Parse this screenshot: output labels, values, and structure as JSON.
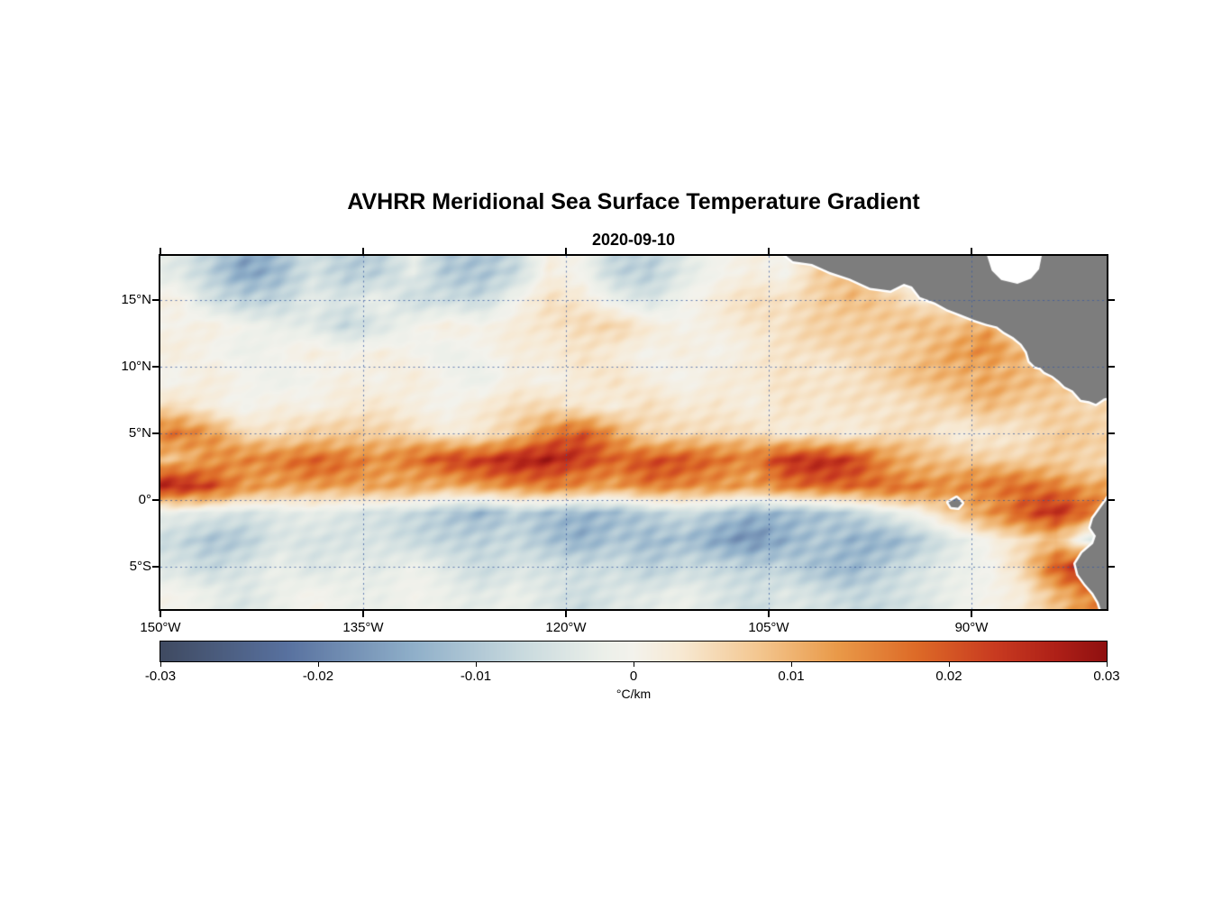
{
  "title": "AVHRR Meridional Sea Surface Temperature Gradient",
  "subtitle": "2020-09-10",
  "colors": {
    "background": "#ffffff",
    "axis": "#000000",
    "grid": "rgba(55,90,160,0.75)",
    "land": "#7d7d7d",
    "coast_halo": "#ffffff",
    "text": "#000000"
  },
  "axes": {
    "lon_range": [
      -150,
      -80
    ],
    "lat_range": [
      -8.2,
      18.3
    ],
    "x_ticks": [
      {
        "lon": -150,
        "label": "150°W"
      },
      {
        "lon": -135,
        "label": "135°W"
      },
      {
        "lon": -120,
        "label": "120°W"
      },
      {
        "lon": -105,
        "label": "105°W"
      },
      {
        "lon": -90,
        "label": "90°W"
      }
    ],
    "y_ticks": [
      {
        "lat": 15,
        "label": "15°N"
      },
      {
        "lat": 10,
        "label": "10°N"
      },
      {
        "lat": 5,
        "label": "5°N"
      },
      {
        "lat": 0,
        "label": "0°"
      },
      {
        "lat": -5,
        "label": "5°S"
      }
    ]
  },
  "colorbar": {
    "min": -0.03,
    "max": 0.03,
    "tick_values": [
      -0.03,
      -0.02,
      -0.01,
      0,
      0.01,
      0.02,
      0.03
    ],
    "tick_labels": [
      "-0.03",
      "-0.02",
      "-0.01",
      "0",
      "0.01",
      "0.02",
      "0.03"
    ],
    "label": "°C/km"
  },
  "chart_data": {
    "type": "heatmap",
    "title": "AVHRR Meridional Sea Surface Temperature Gradient",
    "date": "2020-09-10",
    "value_units": "°C/km",
    "value_scale": 0.001,
    "value_range": [
      -0.03,
      0.03
    ],
    "lon": [
      -148.75,
      -146.25,
      -143.75,
      -141.25,
      -138.75,
      -136.25,
      -133.75,
      -131.25,
      -128.75,
      -126.25,
      -123.75,
      -121.25,
      -118.75,
      -116.25,
      -113.75,
      -111.25,
      -108.75,
      -106.25,
      -103.75,
      -101.25,
      -98.75,
      -96.25,
      -93.75,
      -91.25,
      -88.75,
      -86.25,
      -83.75,
      -81.25
    ],
    "lat": [
      17,
      15,
      13,
      11,
      9,
      7,
      5,
      3,
      1,
      -1,
      -3,
      -5,
      -7
    ],
    "values_milli": [
      [
        -4,
        -8,
        -14,
        -12,
        -6,
        -10,
        -8,
        -2,
        -10,
        -12,
        -8,
        2,
        0,
        -8,
        -10,
        -4,
        0,
        2,
        0,
        6,
        8,
        4,
        0,
        0,
        0,
        0,
        0,
        0
      ],
      [
        2,
        -6,
        -10,
        -8,
        -2,
        -4,
        -2,
        -8,
        -6,
        -6,
        0,
        4,
        2,
        -2,
        -4,
        0,
        2,
        4,
        4,
        8,
        10,
        6,
        2,
        4,
        0,
        0,
        0,
        0
      ],
      [
        0,
        2,
        0,
        -2,
        -4,
        -8,
        -4,
        0,
        2,
        0,
        2,
        4,
        6,
        6,
        2,
        0,
        2,
        4,
        4,
        6,
        6,
        8,
        10,
        8,
        10,
        0,
        0,
        0
      ],
      [
        2,
        0,
        -2,
        0,
        2,
        0,
        2,
        0,
        -2,
        0,
        2,
        2,
        4,
        2,
        0,
        2,
        0,
        2,
        4,
        4,
        6,
        6,
        8,
        12,
        14,
        10,
        0,
        0
      ],
      [
        0,
        2,
        0,
        -2,
        0,
        2,
        0,
        2,
        0,
        -2,
        2,
        0,
        2,
        4,
        2,
        0,
        2,
        2,
        4,
        4,
        4,
        6,
        8,
        10,
        12,
        10,
        8,
        6
      ],
      [
        4,
        2,
        0,
        2,
        0,
        2,
        4,
        2,
        0,
        2,
        4,
        6,
        4,
        2,
        4,
        2,
        4,
        2,
        4,
        2,
        4,
        4,
        6,
        6,
        8,
        6,
        8,
        6
      ],
      [
        18,
        12,
        4,
        4,
        8,
        8,
        6,
        4,
        2,
        4,
        8,
        14,
        18,
        12,
        6,
        6,
        4,
        4,
        2,
        4,
        2,
        4,
        4,
        2,
        4,
        4,
        6,
        6
      ],
      [
        8,
        14,
        16,
        16,
        18,
        16,
        14,
        18,
        22,
        22,
        26,
        28,
        24,
        18,
        20,
        20,
        18,
        16,
        24,
        24,
        22,
        14,
        10,
        8,
        6,
        6,
        8,
        6
      ],
      [
        26,
        22,
        14,
        12,
        12,
        12,
        12,
        12,
        10,
        12,
        14,
        16,
        14,
        12,
        16,
        14,
        14,
        12,
        16,
        18,
        18,
        18,
        16,
        14,
        16,
        18,
        16,
        12
      ],
      [
        -2,
        -4,
        -6,
        -4,
        -2,
        -4,
        -6,
        -8,
        -10,
        -12,
        -8,
        -12,
        -14,
        -12,
        -8,
        -6,
        -10,
        -14,
        -12,
        -10,
        -8,
        -4,
        0,
        8,
        14,
        20,
        24,
        16
      ],
      [
        -8,
        -10,
        -8,
        -4,
        -6,
        -6,
        -4,
        -6,
        -8,
        -10,
        -8,
        -10,
        -12,
        -10,
        -14,
        -12,
        -14,
        -16,
        -14,
        -12,
        -14,
        -12,
        -8,
        -4,
        0,
        4,
        10,
        -4
      ],
      [
        -4,
        -8,
        -6,
        -2,
        -4,
        -2,
        -4,
        -2,
        -4,
        -6,
        -4,
        -6,
        -8,
        -6,
        -8,
        -6,
        -8,
        -10,
        -8,
        -10,
        -12,
        -10,
        -6,
        -2,
        0,
        6,
        18,
        26
      ],
      [
        0,
        -2,
        -4,
        -2,
        0,
        -2,
        -2,
        0,
        -2,
        -4,
        -2,
        -4,
        -6,
        -4,
        -4,
        -2,
        -4,
        -6,
        -4,
        -6,
        -8,
        -6,
        -4,
        -2,
        0,
        2,
        10,
        16
      ]
    ],
    "colormap_stops": [
      {
        "v": -30,
        "c": "#3f4a61"
      },
      {
        "v": -22,
        "c": "#58719f"
      },
      {
        "v": -14,
        "c": "#8fafc9"
      },
      {
        "v": -7,
        "c": "#c9dade"
      },
      {
        "v": -2,
        "c": "#ebefe9"
      },
      {
        "v": 0,
        "c": "#f3f2ec"
      },
      {
        "v": 3,
        "c": "#f7e9d3"
      },
      {
        "v": 8,
        "c": "#f3c68f"
      },
      {
        "v": 13,
        "c": "#e99948"
      },
      {
        "v": 18,
        "c": "#dd6a27"
      },
      {
        "v": 23,
        "c": "#c83a20"
      },
      {
        "v": 27,
        "c": "#ad1f17"
      },
      {
        "v": 30,
        "c": "#8f1010"
      }
    ],
    "nodata_polygons": {
      "caribbean": [
        [
          -89.0,
          18.8
        ],
        [
          -88.5,
          17.2
        ],
        [
          -87.8,
          16.5
        ],
        [
          -86.6,
          16.2
        ],
        [
          -85.6,
          16.6
        ],
        [
          -85.0,
          17.3
        ],
        [
          -84.7,
          18.8
        ]
      ]
    },
    "land_polygons": {
      "central_america": [
        [
          -104.3,
          18.8
        ],
        [
          -103.2,
          17.9
        ],
        [
          -101.8,
          17.7
        ],
        [
          -100.5,
          17.1
        ],
        [
          -99.0,
          16.6
        ],
        [
          -97.5,
          15.9
        ],
        [
          -96.0,
          15.7
        ],
        [
          -95.0,
          16.2
        ],
        [
          -94.4,
          16.0
        ],
        [
          -93.8,
          15.2
        ],
        [
          -92.7,
          14.8
        ],
        [
          -91.8,
          14.3
        ],
        [
          -90.8,
          13.9
        ],
        [
          -89.8,
          13.5
        ],
        [
          -88.9,
          13.2
        ],
        [
          -88.1,
          13.0
        ],
        [
          -87.6,
          12.6
        ],
        [
          -86.9,
          12.2
        ],
        [
          -86.3,
          11.7
        ],
        [
          -85.9,
          11.1
        ],
        [
          -85.7,
          10.4
        ],
        [
          -85.3,
          10.0
        ],
        [
          -84.9,
          9.9
        ],
        [
          -84.6,
          9.6
        ],
        [
          -84.0,
          9.3
        ],
        [
          -83.5,
          8.9
        ],
        [
          -83.1,
          8.5
        ],
        [
          -82.5,
          8.2
        ],
        [
          -81.9,
          7.5
        ],
        [
          -81.3,
          7.4
        ],
        [
          -80.8,
          7.2
        ],
        [
          -80.2,
          7.6
        ],
        [
          -79.0,
          7.8
        ],
        [
          -79.0,
          18.8
        ],
        [
          -84.7,
          18.8
        ],
        [
          -85.0,
          17.3
        ],
        [
          -85.6,
          16.6
        ],
        [
          -86.6,
          16.2
        ],
        [
          -87.8,
          16.5
        ],
        [
          -88.5,
          17.2
        ],
        [
          -89.0,
          18.8
        ]
      ],
      "south_america": [
        [
          -79.5,
          0.8
        ],
        [
          -80.0,
          0.0
        ],
        [
          -80.5,
          -0.7
        ],
        [
          -81.0,
          -1.4
        ],
        [
          -81.2,
          -2.1
        ],
        [
          -80.8,
          -2.7
        ],
        [
          -81.0,
          -3.3
        ],
        [
          -81.8,
          -4.0
        ],
        [
          -82.3,
          -4.8
        ],
        [
          -82.1,
          -5.6
        ],
        [
          -81.6,
          -6.3
        ],
        [
          -81.0,
          -7.0
        ],
        [
          -80.6,
          -7.7
        ],
        [
          -80.3,
          -8.6
        ],
        [
          -78.5,
          -8.6
        ],
        [
          -78.5,
          0.8
        ]
      ],
      "galapagos": [
        [
          -91.7,
          -0.2
        ],
        [
          -91.1,
          0.15
        ],
        [
          -90.7,
          -0.25
        ],
        [
          -91.0,
          -0.6
        ],
        [
          -91.5,
          -0.55
        ]
      ]
    }
  }
}
